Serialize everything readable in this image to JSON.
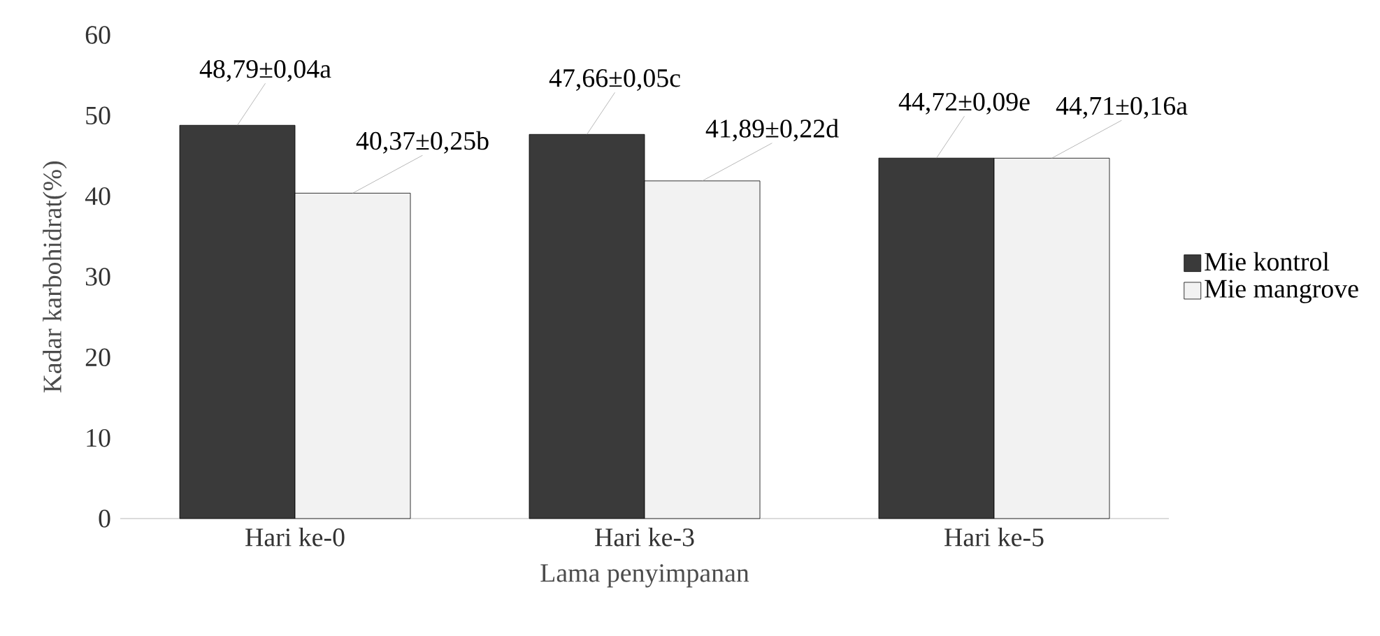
{
  "chart_data": {
    "type": "bar",
    "xlabel": "Lama penyimpanan",
    "ylabel": "Kadar karbohidrat(%)",
    "categories": [
      "Hari ke-0",
      "Hari ke-3",
      "Hari ke-5"
    ],
    "series": [
      {
        "name": "Mie kontrol",
        "color": "#3a3a3a",
        "values": [
          48.79,
          47.66,
          44.72
        ],
        "value_labels": [
          "48,79±0,04a",
          "47,66±0,05c",
          "44,72±0,09e"
        ]
      },
      {
        "name": "Mie mangrove",
        "color": "#f2f2f2",
        "values": [
          40.37,
          41.89,
          44.71
        ],
        "value_labels": [
          "40,37±0,25b",
          "41,89±0,22d",
          "44,71±0,16a"
        ]
      }
    ],
    "ylim": [
      0,
      60
    ],
    "yticks": [
      0,
      10,
      20,
      30,
      40,
      50,
      60
    ],
    "grid": false,
    "legend": "right"
  }
}
